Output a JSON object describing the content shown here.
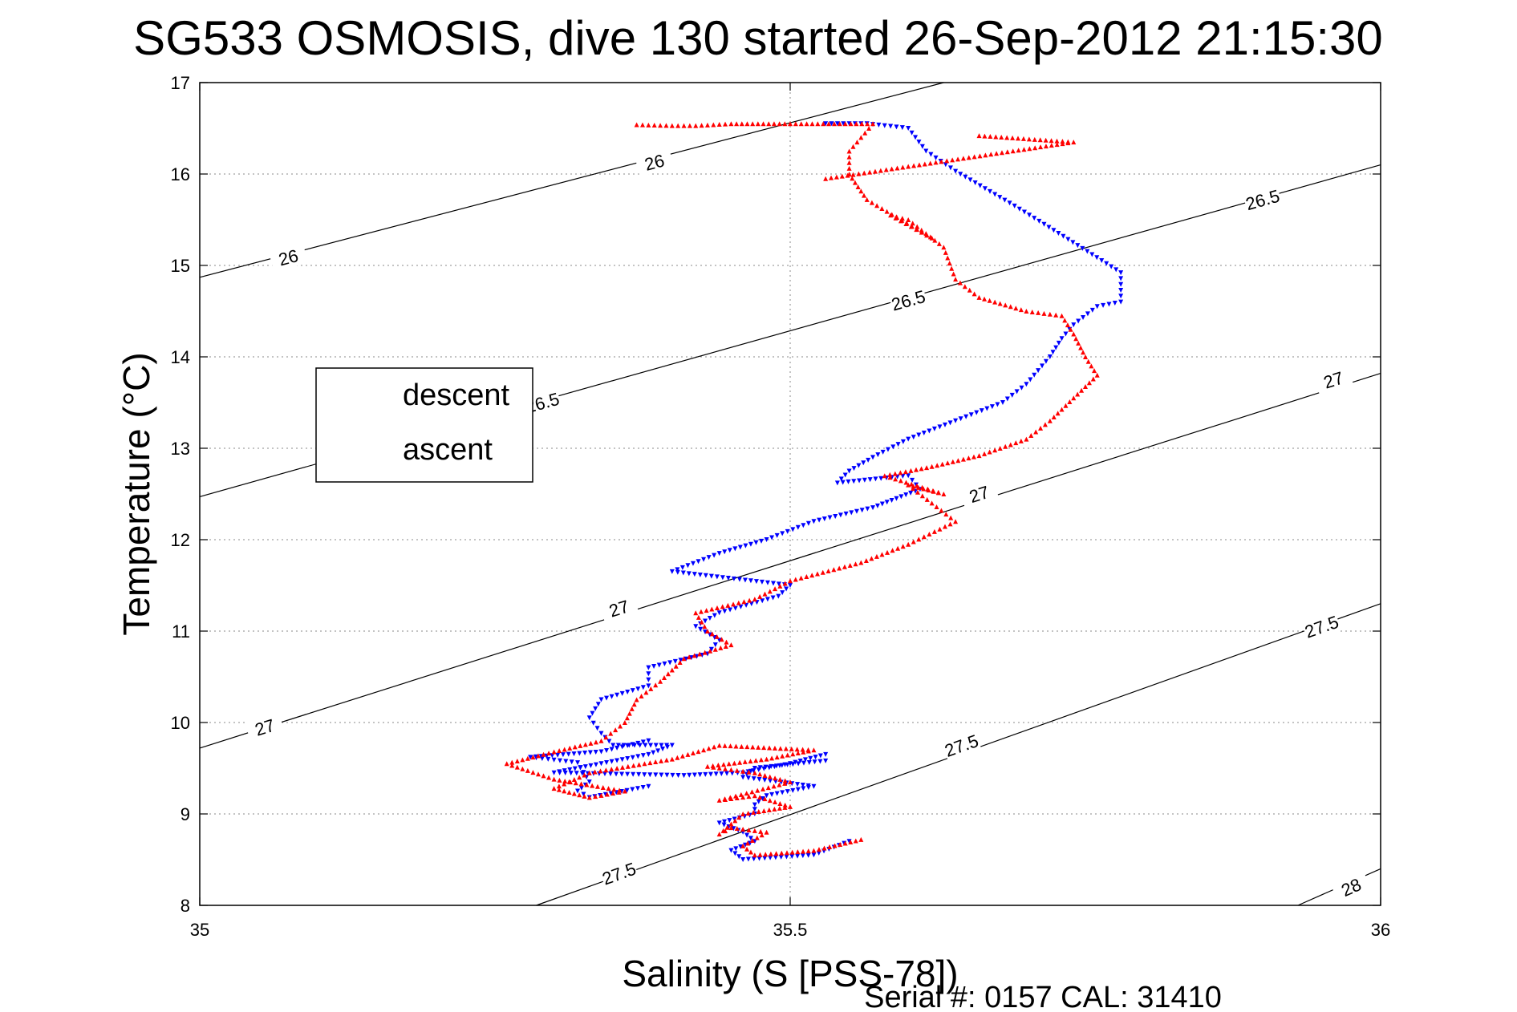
{
  "chart_data": {
    "type": "scatter",
    "title": "SG533 OSMOSIS, dive 130 started 26-Sep-2012 21:15:30",
    "xlabel": "Salinity (S [PSS-78])",
    "ylabel": "Temperature (°C)",
    "xlim": [
      35,
      36
    ],
    "ylim": [
      8,
      17
    ],
    "x_ticks": [
      "35",
      "35.5",
      "36"
    ],
    "y_ticks": [
      "8",
      "9",
      "10",
      "11",
      "12",
      "13",
      "14",
      "15",
      "16",
      "17"
    ],
    "grid": true,
    "legend_position": "left",
    "footer": "Serial #: 0157  CAL: 31410",
    "density_contours": [
      {
        "level": "26",
        "points": [
          [
            35,
            14.87
          ],
          [
            35.63,
            17.0
          ]
        ],
        "labels": [
          [
            35.075,
            15.09
          ],
          [
            35.385,
            16.13
          ]
        ]
      },
      {
        "level": "26.5",
        "points": [
          [
            35,
            12.47
          ],
          [
            36,
            16.1
          ]
        ],
        "labels": [
          [
            35.29,
            13.5
          ],
          [
            35.6,
            14.62
          ],
          [
            35.9,
            15.72
          ]
        ]
      },
      {
        "level": "27",
        "points": [
          [
            35,
            9.72
          ],
          [
            36,
            13.82
          ]
        ],
        "labels": [
          [
            35.055,
            9.95
          ],
          [
            35.355,
            11.25
          ],
          [
            35.66,
            12.5
          ],
          [
            35.96,
            13.75
          ]
        ]
      },
      {
        "level": "27.5",
        "points": [
          [
            35.285,
            8.0
          ],
          [
            36,
            11.3
          ]
        ],
        "labels": [
          [
            35.355,
            8.35
          ],
          [
            35.645,
            9.75
          ],
          [
            35.95,
            11.05
          ]
        ]
      },
      {
        "level": "28",
        "points": [
          [
            35.93,
            8.0
          ],
          [
            36,
            8.4
          ]
        ],
        "labels": [
          [
            35.975,
            8.2
          ]
        ]
      }
    ],
    "series": [
      {
        "name": "descent",
        "color": "#0000ff",
        "marker": "triangle-down",
        "segments": [
          [
            [
              35.53,
              16.55
            ],
            [
              35.565,
              16.55
            ],
            [
              35.6,
              16.5
            ],
            [
              35.615,
              16.25
            ],
            [
              35.64,
              16.03
            ],
            [
              35.69,
              15.65
            ],
            [
              35.715,
              15.45
            ],
            [
              35.78,
              14.92
            ],
            [
              35.78,
              14.6
            ],
            [
              35.76,
              14.55
            ],
            [
              35.74,
              14.35
            ],
            [
              35.73,
              14.2
            ],
            [
              35.72,
              14.0
            ],
            [
              35.7,
              13.7
            ],
            [
              35.68,
              13.5
            ],
            [
              35.64,
              13.3
            ],
            [
              35.6,
              13.1
            ],
            [
              35.57,
              12.9
            ],
            [
              35.55,
              12.75
            ],
            [
              35.54,
              12.62
            ],
            [
              35.6,
              12.7
            ],
            [
              35.61,
              12.55
            ],
            [
              35.59,
              12.45
            ],
            [
              35.57,
              12.35
            ],
            [
              35.52,
              12.2
            ],
            [
              35.48,
              12.0
            ],
            [
              35.44,
              11.85
            ],
            [
              35.4,
              11.65
            ],
            [
              35.5,
              11.5
            ],
            [
              35.49,
              11.38
            ],
            [
              35.44,
              11.2
            ],
            [
              35.42,
              11.05
            ],
            [
              35.44,
              10.9
            ],
            [
              35.43,
              10.75
            ],
            [
              35.38,
              10.6
            ],
            [
              35.38,
              10.4
            ],
            [
              35.34,
              10.25
            ],
            [
              35.33,
              10.05
            ],
            [
              35.34,
              9.88
            ],
            [
              35.35,
              9.75
            ],
            [
              35.4,
              9.75
            ],
            [
              35.38,
              9.65
            ],
            [
              35.34,
              9.55
            ],
            [
              35.3,
              9.45
            ],
            [
              35.41,
              9.42
            ],
            [
              35.46,
              9.45
            ],
            [
              35.5,
              9.55
            ],
            [
              35.53,
              9.65
            ],
            [
              35.53,
              9.58
            ],
            [
              35.47,
              9.5
            ],
            [
              35.46,
              9.4
            ],
            [
              35.52,
              9.3
            ],
            [
              35.48,
              9.2
            ],
            [
              35.47,
              9.1
            ],
            [
              35.47,
              9.0
            ],
            [
              35.44,
              8.9
            ],
            [
              35.46,
              8.8
            ],
            [
              35.47,
              8.7
            ],
            [
              35.45,
              8.6
            ],
            [
              35.46,
              8.5
            ],
            [
              35.52,
              8.55
            ],
            [
              35.55,
              8.7
            ]
          ],
          [
            [
              35.38,
              9.8
            ],
            [
              35.34,
              9.68
            ],
            [
              35.28,
              9.62
            ],
            [
              35.32,
              9.56
            ],
            [
              35.33,
              9.35
            ],
            [
              35.32,
              9.25
            ],
            [
              35.33,
              9.18
            ],
            [
              35.38,
              9.3
            ]
          ]
        ]
      },
      {
        "name": "ascent",
        "color": "#ff0000",
        "marker": "triangle-up",
        "segments": [
          [
            [
              35.56,
              8.72
            ],
            [
              35.52,
              8.6
            ],
            [
              35.47,
              8.55
            ],
            [
              35.46,
              8.65
            ],
            [
              35.48,
              8.8
            ],
            [
              35.45,
              8.85
            ],
            [
              35.44,
              8.78
            ],
            [
              35.46,
              9.0
            ],
            [
              35.5,
              9.08
            ],
            [
              35.47,
              9.2
            ],
            [
              35.44,
              9.15
            ],
            [
              35.5,
              9.35
            ],
            [
              35.47,
              9.45
            ],
            [
              35.43,
              9.52
            ],
            [
              35.48,
              9.6
            ],
            [
              35.52,
              9.7
            ],
            [
              35.44,
              9.75
            ],
            [
              35.4,
              9.6
            ],
            [
              35.33,
              9.45
            ],
            [
              35.3,
              9.28
            ],
            [
              35.33,
              9.18
            ],
            [
              35.36,
              9.25
            ],
            [
              35.3,
              9.38
            ],
            [
              35.26,
              9.55
            ],
            [
              35.3,
              9.68
            ],
            [
              35.34,
              9.8
            ],
            [
              35.36,
              10.0
            ],
            [
              35.37,
              10.25
            ],
            [
              35.39,
              10.45
            ],
            [
              35.41,
              10.7
            ],
            [
              35.45,
              10.85
            ],
            [
              35.43,
              11.0
            ],
            [
              35.42,
              11.2
            ],
            [
              35.47,
              11.35
            ],
            [
              35.5,
              11.55
            ],
            [
              35.56,
              11.75
            ],
            [
              35.6,
              11.95
            ],
            [
              35.64,
              12.2
            ],
            [
              35.62,
              12.4
            ],
            [
              35.6,
              12.6
            ],
            [
              35.63,
              12.5
            ],
            [
              35.58,
              12.7
            ],
            [
              35.62,
              12.8
            ],
            [
              35.66,
              12.92
            ],
            [
              35.7,
              13.1
            ],
            [
              35.72,
              13.3
            ],
            [
              35.74,
              13.55
            ],
            [
              35.76,
              13.8
            ],
            [
              35.75,
              14.0
            ],
            [
              35.74,
              14.25
            ],
            [
              35.73,
              14.45
            ],
            [
              35.7,
              14.5
            ],
            [
              35.66,
              14.65
            ],
            [
              35.64,
              14.85
            ],
            [
              35.63,
              15.2
            ],
            [
              35.6,
              15.5
            ],
            [
              35.585,
              15.55
            ],
            [
              35.62,
              15.3
            ],
            [
              35.565,
              15.72
            ],
            [
              35.55,
              16.0
            ],
            [
              35.55,
              16.25
            ],
            [
              35.57,
              16.55
            ],
            [
              35.5,
              16.55
            ],
            [
              35.45,
              16.55
            ],
            [
              35.42,
              16.53
            ],
            [
              35.4,
              16.53
            ],
            [
              35.37,
              16.54
            ]
          ],
          [
            [
              35.66,
              16.42
            ],
            [
              35.74,
              16.35
            ],
            [
              35.53,
              15.95
            ]
          ]
        ]
      }
    ]
  }
}
